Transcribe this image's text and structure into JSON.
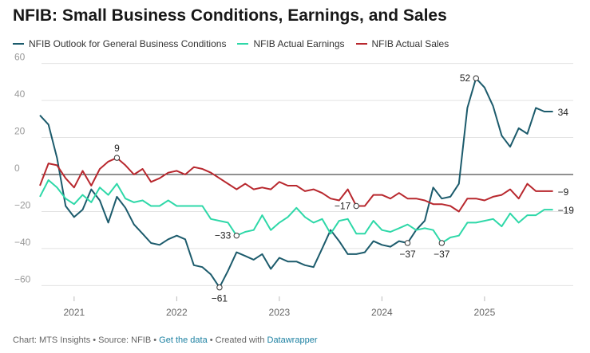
{
  "title": "NFIB: Small Business Conditions, Earnings, and Sales",
  "footer": {
    "chart_prefix": "Chart: ",
    "chart_by": "MTS Insights",
    "sep1": " • Source: ",
    "source": "NFIB",
    "sep2": " • ",
    "get_data": "Get the data",
    "sep3": " • Created with ",
    "created_with": "Datawrapper"
  },
  "chart_data": {
    "type": "line",
    "title": "NFIB: Small Business Conditions, Earnings, and Sales",
    "xlabel": "",
    "ylabel": "",
    "ylim": [
      -65,
      62
    ],
    "yticks": [
      60,
      40,
      20,
      0,
      -20,
      -40,
      -60
    ],
    "xlim": [
      2020.62,
      2025.74
    ],
    "xticks": [
      {
        "label": "2021",
        "x": 2021.0
      },
      {
        "label": "2022",
        "x": 2022.0
      },
      {
        "label": "2023",
        "x": 2023.0
      },
      {
        "label": "2024",
        "x": 2024.0
      },
      {
        "label": "2025",
        "x": 2025.0
      }
    ],
    "grid": true,
    "legend": "top-left",
    "x": [
      2020.667,
      2020.75,
      2020.833,
      2020.917,
      2021.0,
      2021.083,
      2021.167,
      2021.25,
      2021.333,
      2021.417,
      2021.5,
      2021.583,
      2021.667,
      2021.75,
      2021.833,
      2021.917,
      2022.0,
      2022.083,
      2022.167,
      2022.25,
      2022.333,
      2022.417,
      2022.5,
      2022.583,
      2022.667,
      2022.75,
      2022.833,
      2022.917,
      2023.0,
      2023.083,
      2023.167,
      2023.25,
      2023.333,
      2023.417,
      2023.5,
      2023.583,
      2023.667,
      2023.75,
      2023.833,
      2023.917,
      2024.0,
      2024.083,
      2024.167,
      2024.25,
      2024.333,
      2024.417,
      2024.5,
      2024.583,
      2024.667,
      2024.75,
      2024.833,
      2024.917,
      2025.0,
      2025.083,
      2025.167,
      2025.25,
      2025.333,
      2025.417,
      2025.5,
      2025.583,
      2025.667
    ],
    "series": [
      {
        "name": "NFIB Outlook for General Business Conditions",
        "color": "#1c5b6c",
        "values": [
          32,
          27,
          9,
          -17,
          -23,
          -19,
          -8,
          -14,
          -26,
          -12,
          -18,
          -27,
          -32,
          -37,
          -38,
          -35,
          -33,
          -35,
          -49,
          -50,
          -54,
          -61,
          -52,
          -42,
          -44,
          -46,
          -43,
          -51,
          -45,
          -47,
          -47,
          -49,
          -50,
          -40,
          -30,
          -36,
          -43,
          -43,
          -42,
          -36,
          -38,
          -39,
          -36,
          -37,
          -30,
          -25,
          -7,
          -13,
          -12,
          -5,
          36,
          52,
          47,
          37,
          21,
          15,
          25,
          22,
          36,
          34,
          34
        ]
      },
      {
        "name": "NFIB Actual Earnings",
        "color": "#2ed8a8",
        "values": [
          -12,
          -3,
          -7,
          -13,
          -16,
          -11,
          -15,
          -7,
          -11,
          -5,
          -13,
          -15,
          -14,
          -17,
          -17,
          -14,
          -17,
          -17,
          -17,
          -17,
          -24,
          -25,
          -26,
          -33,
          -31,
          -30,
          -22,
          -30,
          -26,
          -23,
          -18,
          -23,
          -26,
          -24,
          -32,
          -25,
          -24,
          -32,
          -32,
          -25,
          -30,
          -31,
          -29,
          -27,
          -30,
          -29,
          -30,
          -37,
          -34,
          -33,
          -26,
          -26,
          -25,
          -24,
          -28,
          -21,
          -26,
          -22,
          -22,
          -19,
          -19
        ]
      },
      {
        "name": "NFIB Actual Sales",
        "color": "#b8282e",
        "values": [
          -6,
          6,
          5,
          -2,
          -7,
          2,
          -6,
          3,
          7,
          9,
          5,
          0,
          3,
          -4,
          -2,
          1,
          2,
          0,
          4,
          3,
          1,
          -2,
          -5,
          -8,
          -5,
          -8,
          -7,
          -8,
          -4,
          -6,
          -6,
          -9,
          -8,
          -10,
          -13,
          -14,
          -8,
          -17,
          -17,
          -11,
          -11,
          -13,
          -10,
          -13,
          -13,
          -14,
          -16,
          -16,
          -17,
          -20,
          -13,
          -13,
          -14,
          -12,
          -11,
          -8,
          -13,
          -5,
          -9,
          -9,
          -9
        ]
      }
    ],
    "annotations": [
      {
        "series": 0,
        "index": 21,
        "label": "−61",
        "position": "below",
        "marker": true
      },
      {
        "series": 0,
        "index": 43,
        "label": "−37",
        "position": "below",
        "marker": true
      },
      {
        "series": 0,
        "index": 51,
        "label": "52",
        "position": "left",
        "marker": true
      },
      {
        "series": 0,
        "index": 60,
        "label": "34",
        "position": "end",
        "marker": false
      },
      {
        "series": 1,
        "index": 23,
        "label": "−33",
        "position": "left",
        "marker": true
      },
      {
        "series": 1,
        "index": 47,
        "label": "−37",
        "position": "below",
        "marker": true
      },
      {
        "series": 1,
        "index": 60,
        "label": "−19",
        "position": "end",
        "marker": false
      },
      {
        "series": 2,
        "index": 9,
        "label": "9",
        "position": "above",
        "marker": true
      },
      {
        "series": 2,
        "index": 37,
        "label": "−17",
        "position": "left",
        "marker": true
      },
      {
        "series": 2,
        "index": 60,
        "label": "−9",
        "position": "end",
        "marker": false
      }
    ]
  }
}
